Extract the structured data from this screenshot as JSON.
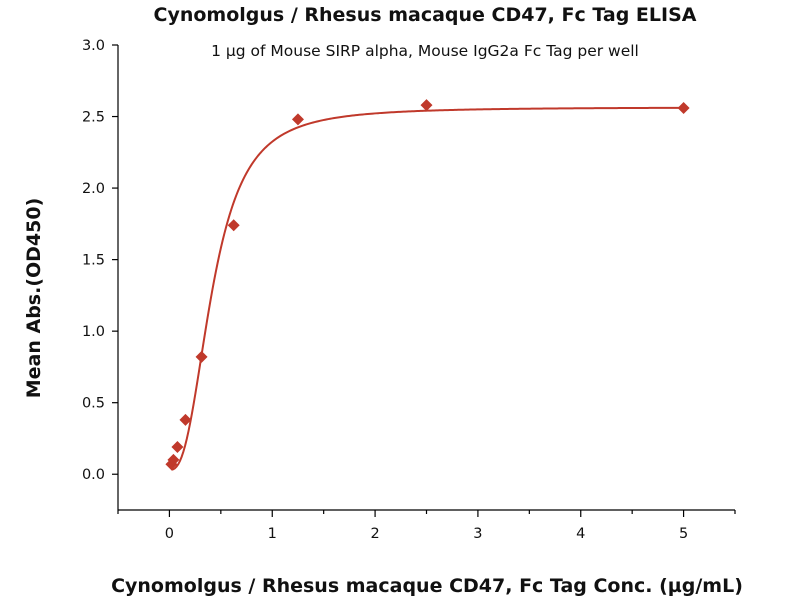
{
  "chart_data": {
    "type": "scatter",
    "title": "Cynomolgus / Rhesus macaque CD47, Fc Tag ELISA",
    "subtitle": "1 µg of Mouse SIRP alpha, Mouse IgG2a Fc Tag per well",
    "xlabel": "Cynomolgus / Rhesus macaque CD47, Fc Tag Conc. (µg/mL)",
    "ylabel": "Mean Abs.(OD450)",
    "xlim": [
      -0.5,
      5.5
    ],
    "ylim": [
      -0.25,
      3.0
    ],
    "x_ticks": [
      0,
      1,
      2,
      3,
      4,
      5
    ],
    "x_tick_labels": [
      "0",
      "1",
      "2",
      "3",
      "4",
      "5"
    ],
    "y_ticks": [
      0.0,
      0.5,
      1.0,
      1.5,
      2.0,
      2.5,
      3.0
    ],
    "y_tick_labels": [
      "0.0",
      "0.5",
      "1.0",
      "1.5",
      "2.0",
      "2.5",
      "3.0"
    ],
    "grid": false,
    "color": "#c0392b",
    "series": [
      {
        "marker": "diamond",
        "x": [
          0.0195,
          0.039,
          0.078,
          0.156,
          0.3125,
          0.625,
          1.25,
          2.5,
          5.0
        ],
        "y": [
          0.07,
          0.1,
          0.19,
          0.38,
          0.82,
          1.74,
          2.48,
          2.58,
          2.56
        ]
      }
    ],
    "fit_curve": {
      "type": "4PL",
      "bottom": 0.03,
      "top": 2.565,
      "ec50": 0.42,
      "hill": 2.6
    }
  }
}
